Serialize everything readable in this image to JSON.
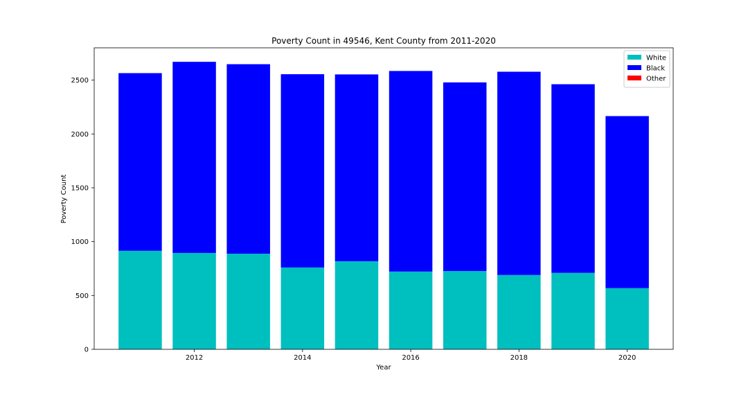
{
  "chart_data": {
    "type": "bar",
    "stacked": true,
    "title": "Poverty Count in 49546, Kent County from 2011-2020",
    "xlabel": "Year",
    "ylabel": "Poverty Count",
    "categories": [
      2011,
      2012,
      2013,
      2014,
      2015,
      2016,
      2017,
      2018,
      2019,
      2020
    ],
    "xticks": [
      2012,
      2014,
      2016,
      2018,
      2020
    ],
    "yticks": [
      0,
      500,
      1000,
      1500,
      2000,
      2500
    ],
    "xlim": [
      2010.15,
      2020.85
    ],
    "ylim": [
      0,
      2800
    ],
    "series": [
      {
        "name": "White",
        "color": "#00bfbf",
        "values": [
          915,
          895,
          888,
          760,
          818,
          722,
          727,
          690,
          710,
          568
        ]
      },
      {
        "name": "Black",
        "color": "#0000ff",
        "values": [
          1650,
          1775,
          1760,
          1795,
          1735,
          1863,
          1752,
          1888,
          1752,
          1598
        ]
      },
      {
        "name": "Other",
        "color": "#ff0000",
        "values": [
          0,
          0,
          0,
          0,
          0,
          0,
          0,
          0,
          0,
          0
        ]
      }
    ],
    "legend": "top-right",
    "grid": false
  }
}
